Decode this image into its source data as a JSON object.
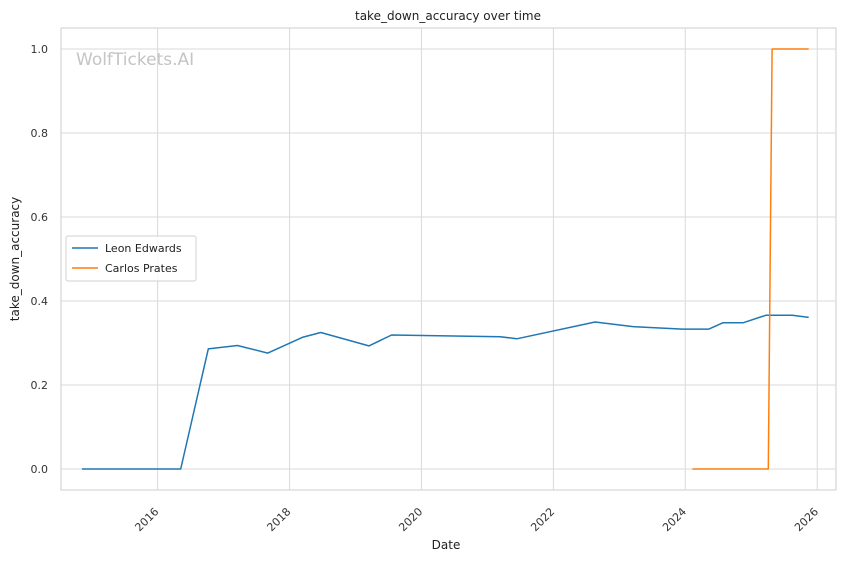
{
  "watermark": "WolfTickets.AI",
  "chart_data": {
    "type": "line",
    "title": "take_down_accuracy over time",
    "xlabel": "Date",
    "ylabel": "take_down_accuracy",
    "x_axis_type": "date",
    "xlim": [
      "2014-07-15",
      "2026-04-15"
    ],
    "ylim": [
      -0.05,
      1.05
    ],
    "x_ticks": [
      {
        "date": "2016-01-01",
        "label": "2016"
      },
      {
        "date": "2018-01-01",
        "label": "2018"
      },
      {
        "date": "2020-01-01",
        "label": "2020"
      },
      {
        "date": "2022-01-01",
        "label": "2022"
      },
      {
        "date": "2024-01-01",
        "label": "2024"
      },
      {
        "date": "2026-01-01",
        "label": "2026"
      }
    ],
    "y_ticks": [
      {
        "value": 0.0,
        "label": "0.0"
      },
      {
        "value": 0.2,
        "label": "0.2"
      },
      {
        "value": 0.4,
        "label": "0.4"
      },
      {
        "value": 0.6,
        "label": "0.6"
      },
      {
        "value": 0.8,
        "label": "0.8"
      },
      {
        "value": 1.0,
        "label": "1.0"
      }
    ],
    "grid": true,
    "legend_position": "center-left",
    "series": [
      {
        "name": "Leon Edwards",
        "color": "#1f77b4",
        "points": [
          {
            "x": "2014-11-08",
            "y": 0.0
          },
          {
            "x": "2016-05-08",
            "y": 0.0
          },
          {
            "x": "2016-10-08",
            "y": 0.286
          },
          {
            "x": "2017-03-18",
            "y": 0.294
          },
          {
            "x": "2017-09-02",
            "y": 0.276
          },
          {
            "x": "2018-03-17",
            "y": 0.314
          },
          {
            "x": "2018-06-23",
            "y": 0.325
          },
          {
            "x": "2019-03-16",
            "y": 0.293
          },
          {
            "x": "2019-07-20",
            "y": 0.319
          },
          {
            "x": "2021-03-13",
            "y": 0.315
          },
          {
            "x": "2021-06-12",
            "y": 0.31
          },
          {
            "x": "2022-08-20",
            "y": 0.35
          },
          {
            "x": "2023-03-18",
            "y": 0.339
          },
          {
            "x": "2023-12-16",
            "y": 0.333
          },
          {
            "x": "2024-05-11",
            "y": 0.333
          },
          {
            "x": "2024-07-27",
            "y": 0.348
          },
          {
            "x": "2024-11-16",
            "y": 0.348
          },
          {
            "x": "2025-03-22",
            "y": 0.366
          },
          {
            "x": "2025-08-16",
            "y": 0.366
          },
          {
            "x": "2025-11-15",
            "y": 0.361
          }
        ]
      },
      {
        "name": "Carlos Prates",
        "color": "#ff7f0e",
        "points": [
          {
            "x": "2024-02-10",
            "y": 0.0
          },
          {
            "x": "2025-04-05",
            "y": 0.0
          },
          {
            "x": "2025-04-26",
            "y": 1.0
          },
          {
            "x": "2025-11-15",
            "y": 1.0
          }
        ]
      }
    ]
  }
}
